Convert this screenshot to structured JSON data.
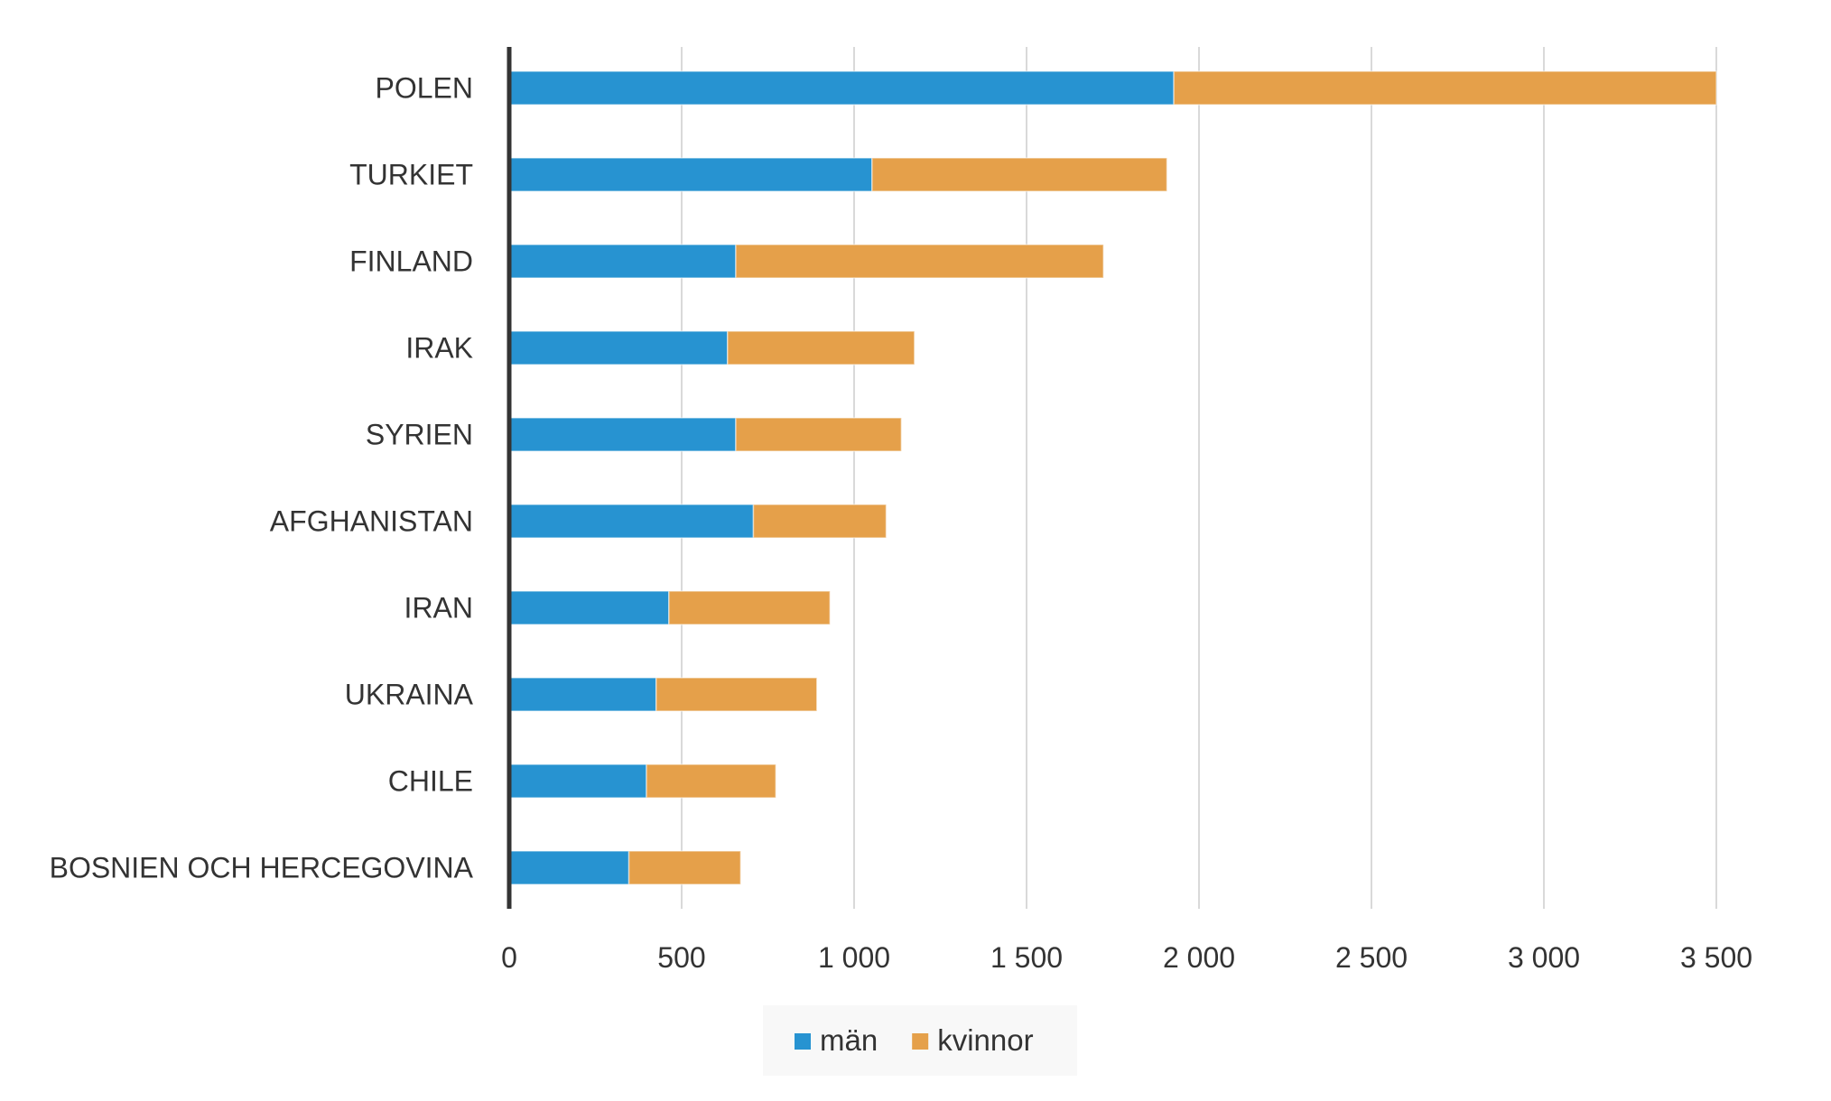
{
  "chart_data": {
    "type": "bar",
    "orientation": "horizontal",
    "stacked": true,
    "categories": [
      "POLEN",
      "TURKIET",
      "FINLAND",
      "IRAK",
      "SYRIEN",
      "AFGHANISTAN",
      "IRAN",
      "UKRAINA",
      "CHILE",
      "BOSNIEN OCH HERCEGOVINA"
    ],
    "series": [
      {
        "name": "män",
        "color": "#2793d1",
        "values": [
          1927,
          1052,
          657,
          633,
          657,
          708,
          463,
          426,
          398,
          347
        ]
      },
      {
        "name": "kvinnor",
        "color": "#e5a04a",
        "values": [
          1573,
          855,
          1066,
          542,
          480,
          385,
          467,
          466,
          375,
          324
        ]
      }
    ],
    "xlim": [
      0,
      3500
    ],
    "xticks": [
      0,
      500,
      1000,
      1500,
      2000,
      2500,
      3000,
      3500
    ],
    "xtick_labels": [
      "0",
      "500",
      "1 000",
      "1 500",
      "2 000",
      "2 500",
      "3 000",
      "3 500"
    ],
    "grid": true,
    "legend": "bottom"
  }
}
